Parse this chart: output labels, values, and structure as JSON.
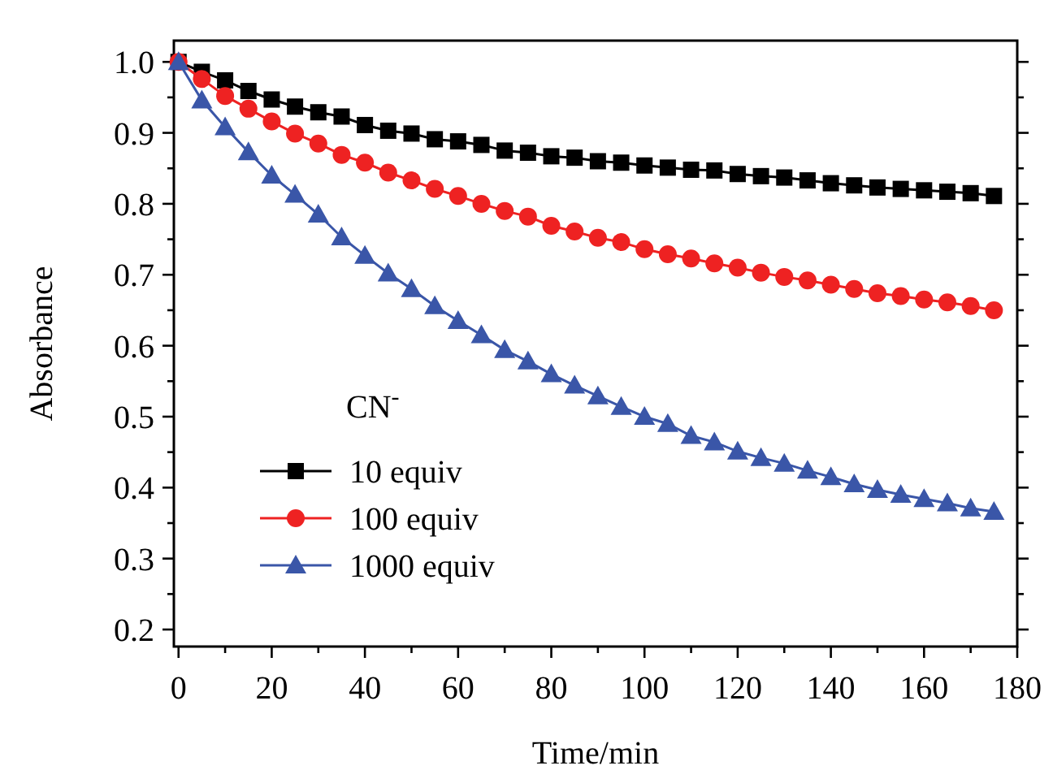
{
  "chart_data": {
    "type": "line",
    "xlabel": "Time/min",
    "ylabel": "Absorbance",
    "legend_title": "CN$^{-}$",
    "legend": "bottom left",
    "grid": false,
    "line_style": "solid",
    "xlim": [
      -1,
      180
    ],
    "ylim": [
      0.176,
      1.03
    ],
    "xticks": [
      0,
      {
        "value": 10,
        "label": null
      },
      20,
      {
        "value": 30,
        "label": null
      },
      40,
      {
        "value": 50,
        "label": null
      },
      60,
      {
        "value": 70,
        "label": null
      },
      80,
      {
        "value": 90,
        "label": null
      },
      100,
      {
        "value": 110,
        "label": null
      },
      120,
      {
        "value": 130,
        "label": null
      },
      140,
      {
        "value": 150,
        "label": null
      },
      160,
      {
        "value": 170,
        "label": null
      },
      180
    ],
    "yticks": [
      {
        "value": 0.2,
        "label": "0.2"
      },
      {
        "value": 0.25,
        "label": null
      },
      {
        "value": 0.3,
        "label": "0.3"
      },
      {
        "value": 0.35,
        "label": null
      },
      {
        "value": 0.4,
        "label": "0.4"
      },
      {
        "value": 0.45,
        "label": null
      },
      {
        "value": 0.5,
        "label": "0.5"
      },
      {
        "value": 0.55,
        "label": null
      },
      {
        "value": 0.6,
        "label": "0.6"
      },
      {
        "value": 0.65,
        "label": null
      },
      {
        "value": 0.7,
        "label": "0.7"
      },
      {
        "value": 0.75,
        "label": null
      },
      {
        "value": 0.8,
        "label": "0.8"
      },
      {
        "value": 0.85,
        "label": null
      },
      {
        "value": 0.9,
        "label": "0.9"
      },
      {
        "value": 0.95,
        "label": null
      },
      {
        "value": 1.0,
        "label": "1.0"
      }
    ],
    "x": [
      0,
      5,
      10,
      15,
      20,
      25,
      30,
      35,
      40,
      45,
      50,
      55,
      60,
      65,
      70,
      75,
      80,
      85,
      90,
      95,
      100,
      105,
      110,
      115,
      120,
      125,
      130,
      135,
      140,
      145,
      150,
      155,
      160,
      165,
      170,
      175
    ],
    "series": [
      {
        "name": "10 equiv",
        "color": "#000000",
        "marker": "square",
        "values": [
          1.0,
          0.986,
          0.974,
          0.959,
          0.947,
          0.937,
          0.929,
          0.923,
          0.911,
          0.903,
          0.899,
          0.891,
          0.888,
          0.883,
          0.875,
          0.872,
          0.867,
          0.865,
          0.86,
          0.858,
          0.854,
          0.851,
          0.848,
          0.847,
          0.842,
          0.839,
          0.837,
          0.833,
          0.829,
          0.826,
          0.823,
          0.821,
          0.819,
          0.817,
          0.815,
          0.811
        ]
      },
      {
        "name": "100 equiv",
        "color": "#ee2222",
        "marker": "circle",
        "values": [
          1.0,
          0.976,
          0.952,
          0.934,
          0.916,
          0.899,
          0.885,
          0.869,
          0.858,
          0.844,
          0.833,
          0.821,
          0.811,
          0.8,
          0.79,
          0.782,
          0.769,
          0.761,
          0.752,
          0.746,
          0.736,
          0.729,
          0.723,
          0.716,
          0.71,
          0.703,
          0.697,
          0.692,
          0.686,
          0.68,
          0.674,
          0.67,
          0.665,
          0.661,
          0.656,
          0.65
        ]
      },
      {
        "name": "1000 equiv",
        "color": "#3a56a8",
        "marker": "triangle",
        "values": [
          1.0,
          0.946,
          0.908,
          0.873,
          0.84,
          0.813,
          0.785,
          0.753,
          0.727,
          0.702,
          0.68,
          0.656,
          0.635,
          0.615,
          0.594,
          0.578,
          0.56,
          0.544,
          0.529,
          0.514,
          0.5,
          0.49,
          0.473,
          0.464,
          0.451,
          0.442,
          0.434,
          0.424,
          0.415,
          0.405,
          0.397,
          0.39,
          0.384,
          0.378,
          0.371,
          0.366
        ]
      }
    ]
  }
}
